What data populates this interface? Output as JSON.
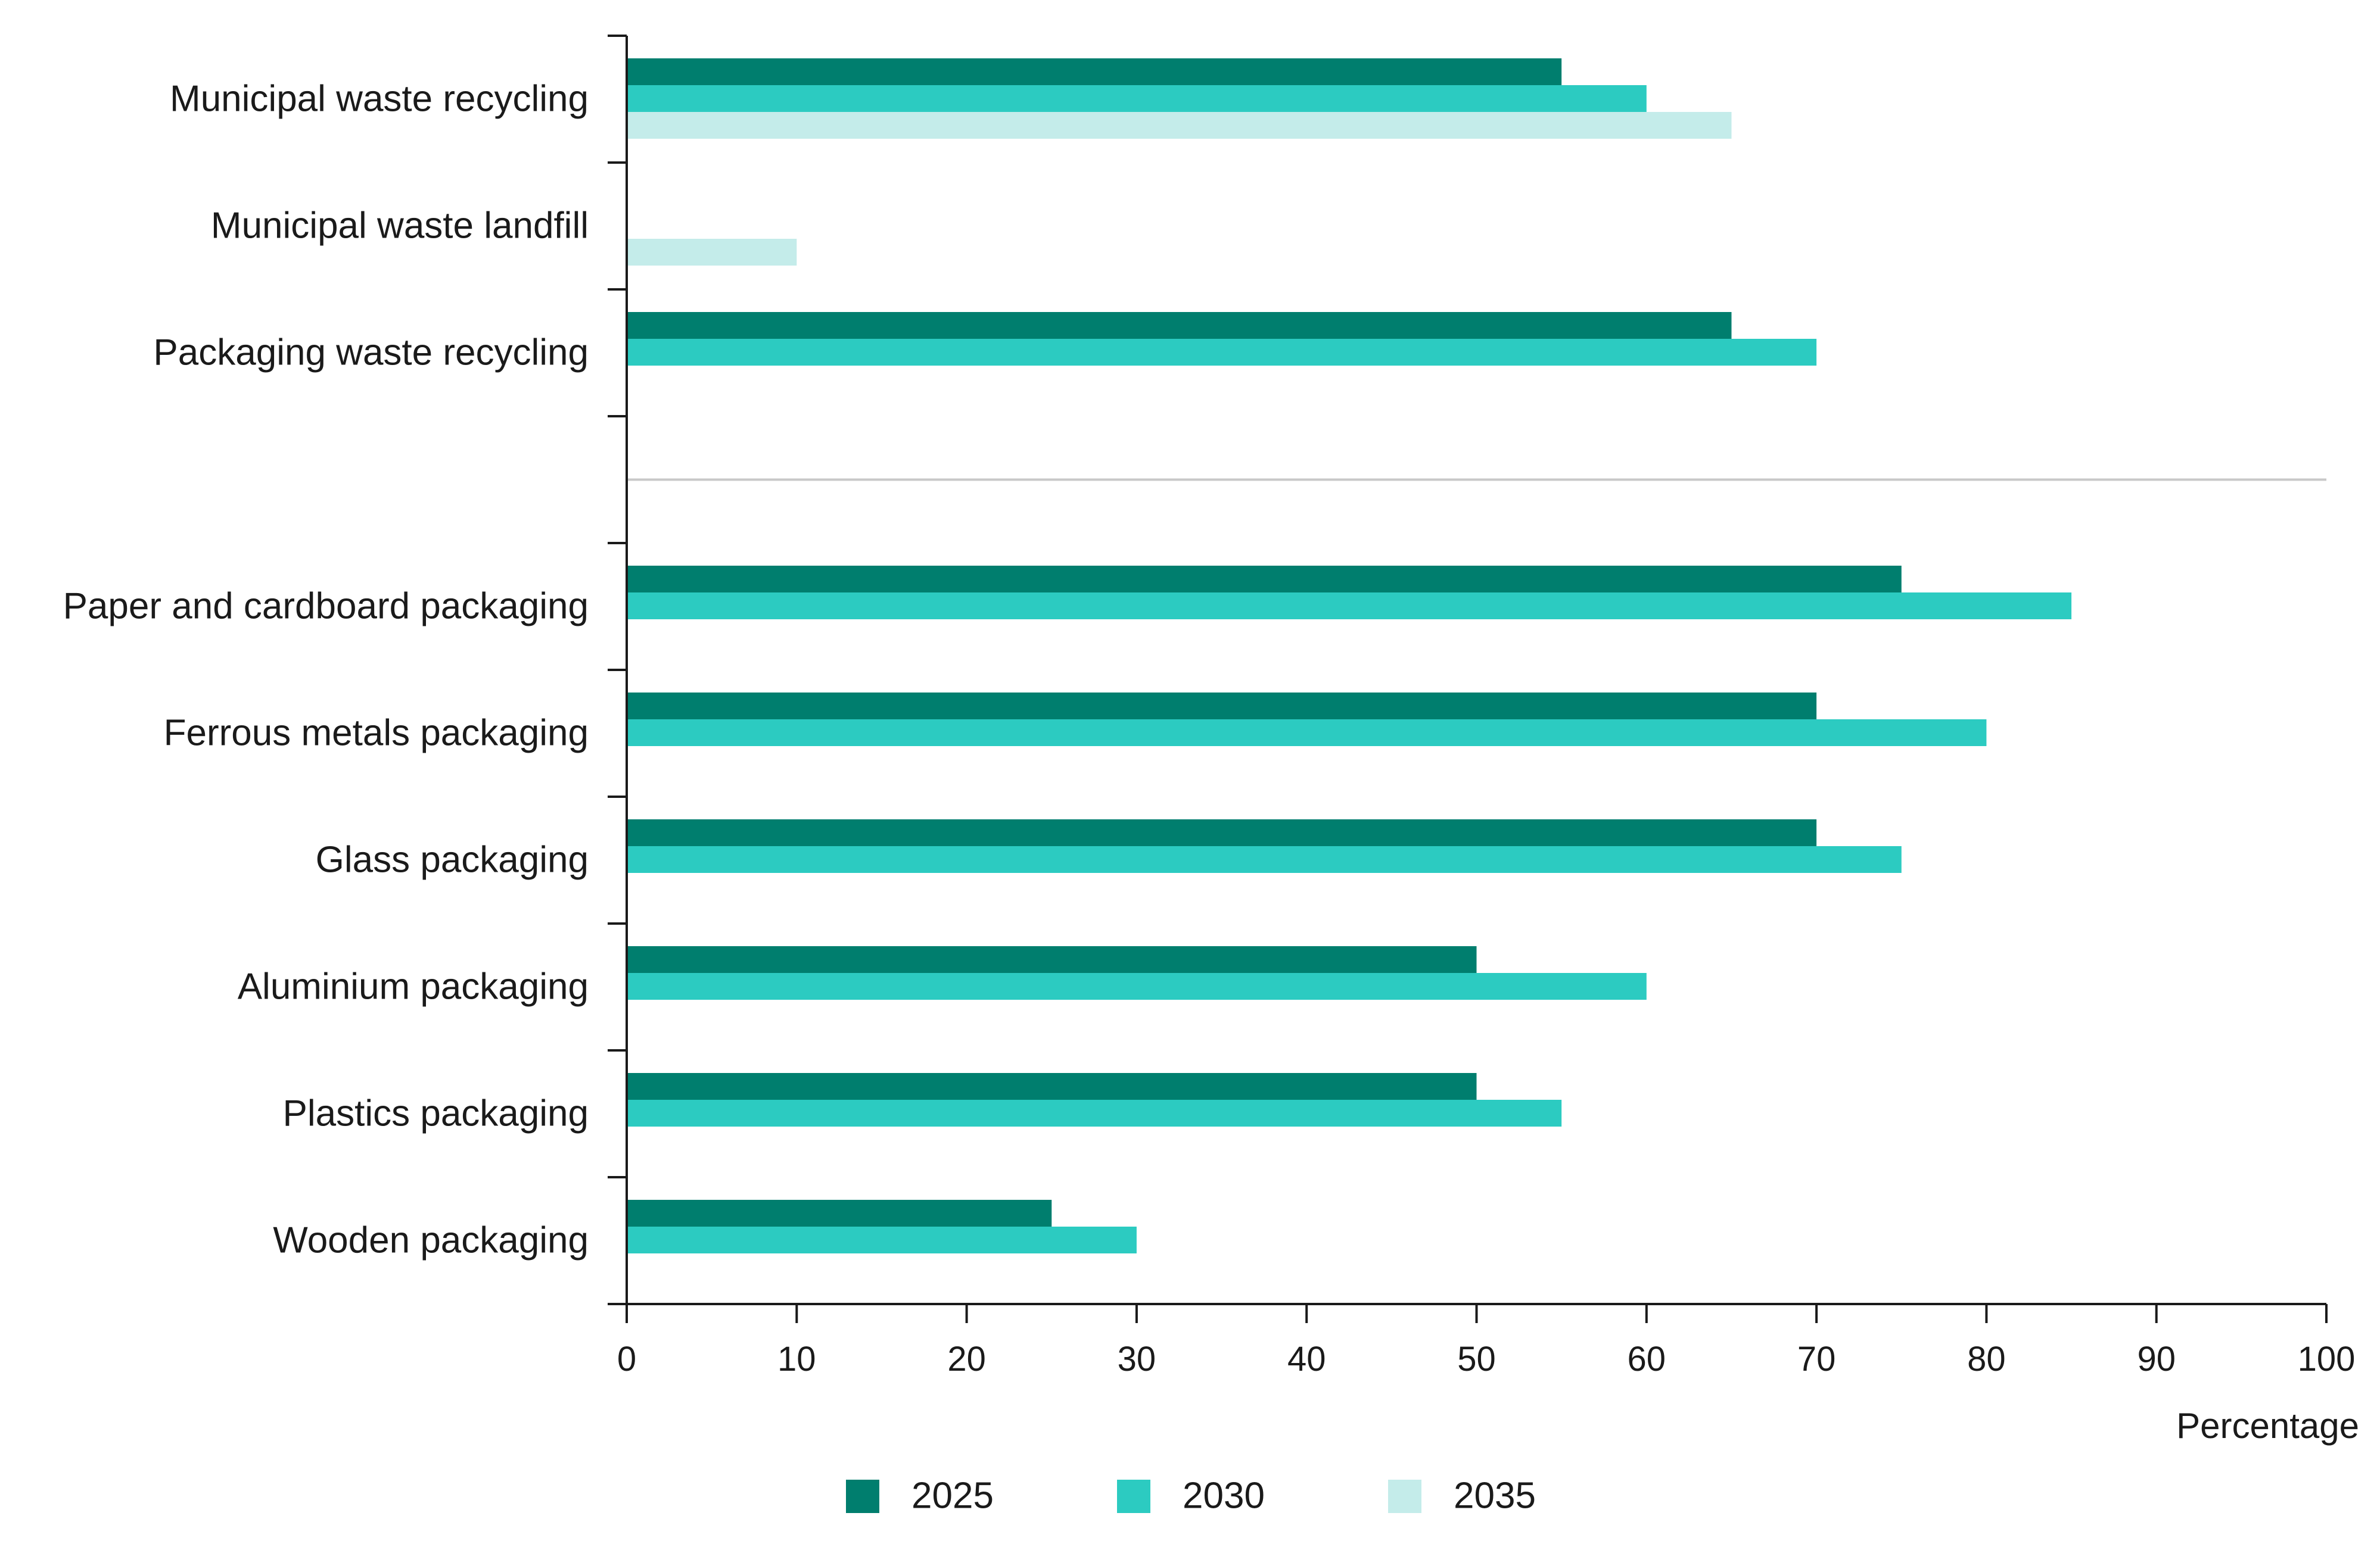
{
  "chart_data": {
    "type": "bar",
    "orientation": "horizontal",
    "title": "",
    "xlabel": "Percentage",
    "ylabel": "",
    "xlim": [
      0,
      100
    ],
    "x_ticks": [
      "0",
      "10",
      "20",
      "30",
      "40",
      "50",
      "60",
      "70",
      "80",
      "90",
      "100"
    ],
    "grid": false,
    "legend_position": "bottom",
    "categories": [
      "Municipal waste recycling",
      "Municipal waste landfill",
      "Packaging waste recycling",
      "Paper and cardboard packaging",
      "Ferrous metals packaging",
      "Glass packaging",
      "Aluminium packaging",
      "Plastics packaging",
      "Wooden packaging"
    ],
    "group_separator_after_category_index": 2,
    "series": [
      {
        "name": "2025",
        "color": "#007e6e",
        "values": [
          55,
          null,
          65,
          75,
          70,
          70,
          50,
          50,
          25
        ]
      },
      {
        "name": "2030",
        "color": "#2ccbc1",
        "values": [
          60,
          null,
          70,
          85,
          80,
          75,
          60,
          55,
          30
        ]
      },
      {
        "name": "2035",
        "color": "#c4ecea",
        "values": [
          65,
          10,
          null,
          null,
          null,
          null,
          null,
          null,
          null
        ]
      }
    ]
  }
}
